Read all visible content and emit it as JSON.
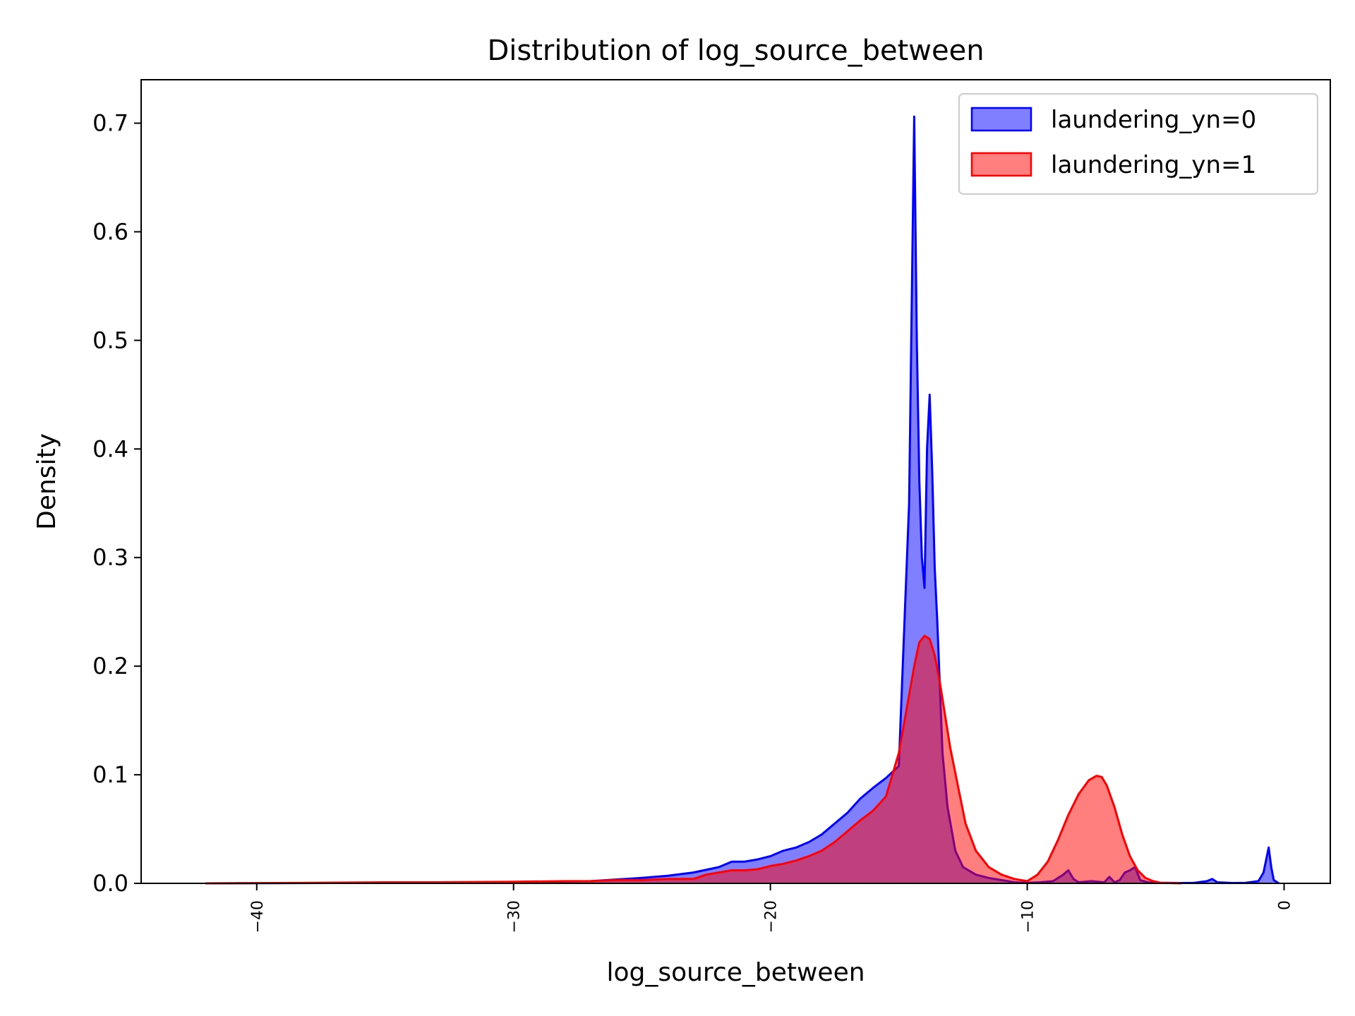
{
  "chart_data": {
    "type": "area",
    "title": "Distribution of log_source_between",
    "xlabel": "log_source_between",
    "ylabel": "Density",
    "xlim": [
      -44.5,
      1.8
    ],
    "ylim": [
      0,
      0.74
    ],
    "xticks": [
      -40,
      -30,
      -20,
      -10,
      0
    ],
    "xtick_labels": [
      "−40",
      "−30",
      "−20",
      "−10",
      "0"
    ],
    "yticks": [
      0.0,
      0.1,
      0.2,
      0.3,
      0.4,
      0.5,
      0.6,
      0.7
    ],
    "ytick_labels": [
      "0.0",
      "0.1",
      "0.2",
      "0.3",
      "0.4",
      "0.5",
      "0.6",
      "0.7"
    ],
    "grid": false,
    "legend_position": "top-right",
    "series": [
      {
        "name": "laundering_yn=0",
        "color": "#0000ff",
        "x": [
          -42,
          -35,
          -30,
          -27,
          -25,
          -24,
          -23,
          -22,
          -21.5,
          -21,
          -20.5,
          -20,
          -19.5,
          -19,
          -18.5,
          -18,
          -17.5,
          -17,
          -16.5,
          -16,
          -15.5,
          -15,
          -14.6,
          -14.4,
          -14.3,
          -14.2,
          -14.1,
          -14,
          -13.9,
          -13.8,
          -13.7,
          -13.6,
          -13.5,
          -13.3,
          -13.1,
          -12.8,
          -12.5,
          -12,
          -11.5,
          -11,
          -10.5,
          -10,
          -9.5,
          -9,
          -8.6,
          -8.4,
          -8.2,
          -8,
          -7.5,
          -7,
          -6.8,
          -6.6,
          -6.4,
          -6.2,
          -6,
          -5.8,
          -5.6,
          -5.3,
          -5,
          -4.5,
          -4,
          -3.5,
          -3,
          -2.8,
          -2.6,
          -2,
          -1.5,
          -1,
          -0.8,
          -0.6,
          -0.5,
          -0.4,
          -0.2
        ],
        "y": [
          0,
          0.0005,
          0.001,
          0.002,
          0.005,
          0.007,
          0.01,
          0.015,
          0.02,
          0.02,
          0.022,
          0.025,
          0.03,
          0.033,
          0.038,
          0.045,
          0.055,
          0.065,
          0.078,
          0.088,
          0.097,
          0.108,
          0.35,
          0.706,
          0.5,
          0.37,
          0.3,
          0.272,
          0.4,
          0.45,
          0.38,
          0.29,
          0.24,
          0.12,
          0.07,
          0.03,
          0.015,
          0.008,
          0.005,
          0.003,
          0.001,
          0.0005,
          0.001,
          0.002,
          0.008,
          0.012,
          0.004,
          0.001,
          0.002,
          0.001,
          0.006,
          0.001,
          0.003,
          0.01,
          0.012,
          0.015,
          0.003,
          0.001,
          0.0005,
          0.0005,
          0.0003,
          0.0005,
          0.002,
          0.004,
          0.001,
          0.0003,
          0.0005,
          0.002,
          0.01,
          0.033,
          0.015,
          0.003,
          0
        ]
      },
      {
        "name": "laundering_yn=1",
        "color": "#ff0000",
        "x": [
          -42,
          -38,
          -35,
          -33,
          -30,
          -28,
          -27,
          -26,
          -25,
          -24,
          -23,
          -22.5,
          -22,
          -21.5,
          -21,
          -20.5,
          -20,
          -19.5,
          -19,
          -18.5,
          -18,
          -17.5,
          -17,
          -16.5,
          -16,
          -15.5,
          -15,
          -14.7,
          -14.4,
          -14.2,
          -14,
          -13.8,
          -13.6,
          -13.4,
          -13.2,
          -13,
          -12.7,
          -12.4,
          -12,
          -11.5,
          -11,
          -10.5,
          -10,
          -9.6,
          -9.2,
          -8.8,
          -8.4,
          -8,
          -7.6,
          -7.3,
          -7.1,
          -6.9,
          -6.6,
          -6.3,
          -6,
          -5.7,
          -5.4,
          -5.1,
          -4.8,
          -4
        ],
        "y": [
          0,
          0.0005,
          0.001,
          0.001,
          0.0015,
          0.002,
          0.002,
          0.003,
          0.003,
          0.004,
          0.004,
          0.008,
          0.01,
          0.012,
          0.012,
          0.013,
          0.016,
          0.018,
          0.021,
          0.025,
          0.03,
          0.038,
          0.048,
          0.058,
          0.067,
          0.08,
          0.12,
          0.16,
          0.2,
          0.222,
          0.228,
          0.225,
          0.21,
          0.185,
          0.155,
          0.125,
          0.09,
          0.055,
          0.03,
          0.015,
          0.008,
          0.004,
          0.002,
          0.008,
          0.02,
          0.04,
          0.063,
          0.082,
          0.095,
          0.099,
          0.098,
          0.09,
          0.07,
          0.045,
          0.025,
          0.012,
          0.005,
          0.002,
          0.0005,
          0
        ]
      }
    ]
  }
}
